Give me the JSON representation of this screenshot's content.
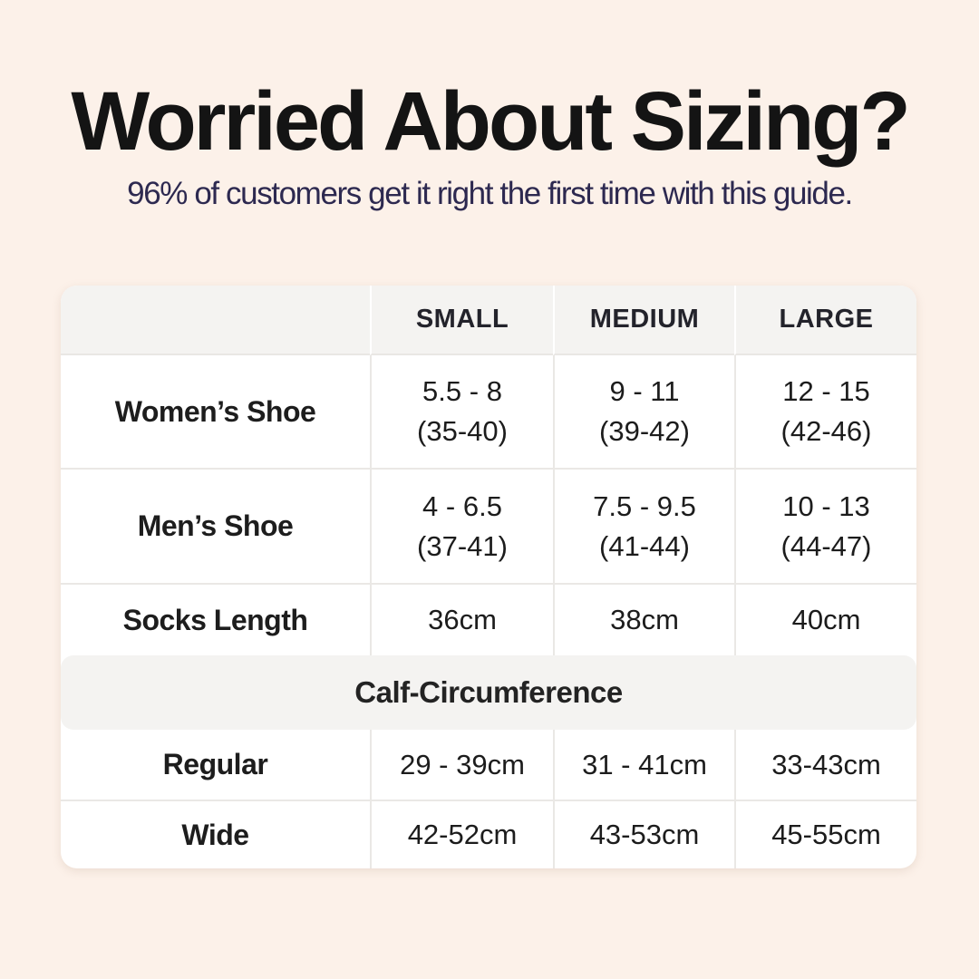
{
  "page": {
    "title": "Worried About Sizing?",
    "subtitle": "96% of customers get it right the first time with this guide."
  },
  "colors": {
    "background": "#fcf1e9",
    "card": "#ffffff",
    "band_gray": "#f4f3f1",
    "divider": "#eae8e5",
    "title_text": "#141414",
    "subtitle_text": "#2d2950"
  },
  "table": {
    "size_headers": [
      "SMALL",
      "MEDIUM",
      "LARGE"
    ],
    "shoe_rows": [
      {
        "label": "Women’s Shoe",
        "cells": [
          {
            "top": "5.5 - 8",
            "bottom": "(35-40)"
          },
          {
            "top": "9 - 11",
            "bottom": "(39-42)"
          },
          {
            "top": "12 - 15",
            "bottom": "(42-46)"
          }
        ]
      },
      {
        "label": "Men’s Shoe",
        "cells": [
          {
            "top": "4 - 6.5",
            "bottom": "(37-41)"
          },
          {
            "top": "7.5 - 9.5",
            "bottom": "(41-44)"
          },
          {
            "top": "10 - 13",
            "bottom": "(44-47)"
          }
        ]
      }
    ],
    "socks_row": {
      "label": "Socks Length",
      "cells": [
        "36cm",
        "38cm",
        "40cm"
      ]
    },
    "calf_section_title": "Calf-Circumference",
    "calf_rows": [
      {
        "label": "Regular",
        "cells": [
          "29 - 39cm",
          "31 - 41cm",
          "33-43cm"
        ]
      },
      {
        "label": "Wide",
        "cells": [
          "42-52cm",
          "43-53cm",
          "45-55cm"
        ]
      }
    ]
  }
}
